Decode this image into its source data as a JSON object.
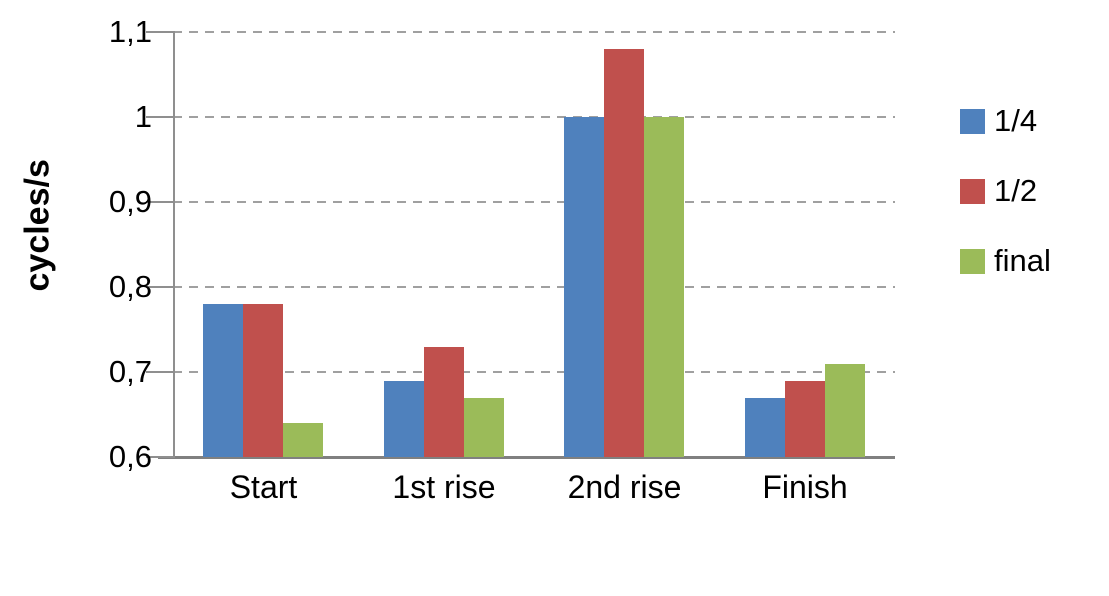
{
  "chart_data": {
    "type": "bar",
    "title": "",
    "ylabel": "cycles/s",
    "xlabel": "",
    "categories": [
      "Start",
      "1st rise",
      "2nd rise",
      "Finish"
    ],
    "series": [
      {
        "name": "1/4",
        "color": "#4F81BD",
        "values": [
          0.78,
          0.69,
          1.0,
          0.67
        ]
      },
      {
        "name": "1/2",
        "color": "#C0504D",
        "values": [
          0.78,
          0.73,
          1.08,
          0.69
        ]
      },
      {
        "name": "final",
        "color": "#9BBB59",
        "values": [
          0.64,
          0.67,
          1.0,
          0.71
        ]
      }
    ],
    "ylim": [
      0.6,
      1.1
    ],
    "ytick_step": 0.1,
    "ytick_labels": [
      "0,6",
      "0,7",
      "0,8",
      "0,9",
      "1",
      "1,1"
    ],
    "grid": "horizontal-dashed",
    "legend_position": "right",
    "colors": {
      "gridline": "#A0A0A0",
      "axis": "#808080",
      "text": "#000000",
      "background": "#FFFFFF"
    }
  }
}
